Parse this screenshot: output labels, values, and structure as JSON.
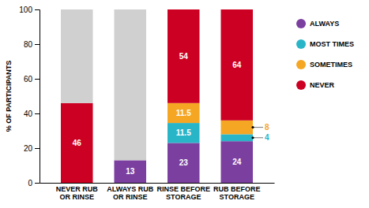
{
  "chart_data": {
    "type": "bar",
    "stacked": true,
    "categories": [
      "NEVER RUB\nOR RINSE",
      "ALWAYS RUB\nOR RINSE",
      "RINSE BEFORE\nSTORAGE",
      "RUB BEFORE\nSTORAGE"
    ],
    "series": [
      {
        "name": "ALWAYS",
        "color": "#7B3FA0",
        "values": [
          0,
          13,
          23,
          24
        ],
        "value_labels": [
          null,
          "13",
          "23",
          "24"
        ]
      },
      {
        "name": "MOST TIMES",
        "color": "#29B5C8",
        "values": [
          0,
          0,
          11.5,
          4
        ],
        "value_labels": [
          null,
          null,
          "11.5",
          "4"
        ]
      },
      {
        "name": "SOMETIMES",
        "color": "#F5A623",
        "values": [
          0,
          0,
          11.5,
          8
        ],
        "value_labels": [
          null,
          null,
          "11.5",
          "8"
        ]
      },
      {
        "name": "NEVER",
        "color": "#CC0022",
        "values": [
          46,
          0,
          54,
          64
        ],
        "value_labels": [
          "46",
          null,
          "54",
          "64"
        ]
      },
      {
        "color": "#D0D0D0",
        "values": [
          54,
          87,
          0,
          0
        ]
      }
    ],
    "ylabel": "% OF PARTICIPANTS",
    "ylim": [
      0,
      100
    ],
    "yticks": [
      0,
      20,
      40,
      60,
      80,
      100
    ],
    "data_labels": true,
    "legend": "right",
    "grid": false
  }
}
